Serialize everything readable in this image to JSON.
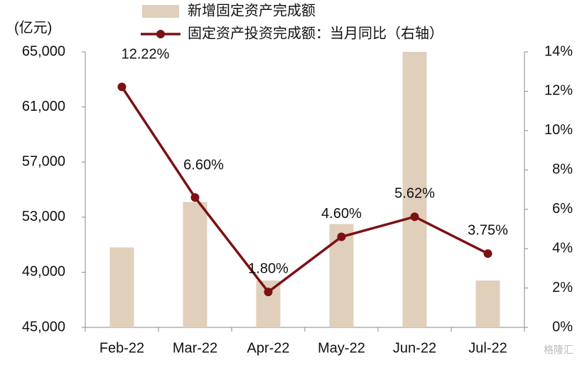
{
  "chart_data": {
    "type": "bar_line",
    "unit_label": "(亿元)",
    "watermark": "格隆汇",
    "categories": [
      "Feb-22",
      "Mar-22",
      "Apr-22",
      "May-22",
      "Jun-22",
      "Jul-22"
    ],
    "series": [
      {
        "name": "新增固定资产完成额",
        "type": "bar",
        "color": "#e0cfbb",
        "values": [
          50800,
          54100,
          48400,
          52500,
          65000,
          48400
        ]
      },
      {
        "name": "固定资产投资完成额：当月同比（右轴）",
        "type": "line",
        "axis": "y2",
        "color": "#7b1113",
        "values": [
          12.22,
          6.6,
          1.8,
          4.6,
          5.62,
          3.75
        ],
        "value_labels": [
          "12.22%",
          "6.60%",
          "1.80%",
          "4.60%",
          "5.62%",
          "3.75%"
        ]
      }
    ],
    "ylim": [
      45000,
      65000
    ],
    "yticks": [
      {
        "value": 45000,
        "label": "45,000"
      },
      {
        "value": 49000,
        "label": "49,000"
      },
      {
        "value": 53000,
        "label": "53,000"
      },
      {
        "value": 57000,
        "label": "57,000"
      },
      {
        "value": 61000,
        "label": "61,000"
      },
      {
        "value": 65000,
        "label": "65,000"
      }
    ],
    "y2lim": [
      0,
      14
    ],
    "y2ticks": [
      {
        "value": 0,
        "label": "0%"
      },
      {
        "value": 2,
        "label": "2%"
      },
      {
        "value": 4,
        "label": "4%"
      },
      {
        "value": 6,
        "label": "6%"
      },
      {
        "value": 8,
        "label": "8%"
      },
      {
        "value": 10,
        "label": "10%"
      },
      {
        "value": 12,
        "label": "12%"
      },
      {
        "value": 14,
        "label": "14%"
      }
    ]
  }
}
